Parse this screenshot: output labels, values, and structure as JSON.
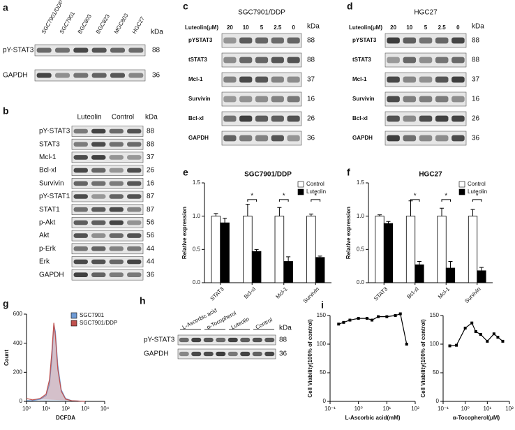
{
  "panels": {
    "a": {
      "letter": "a",
      "lanes": [
        "SGC7901/DDP",
        "SGC7901",
        "BGC803",
        "BGC823",
        "MGC803",
        "HGC27"
      ],
      "kda_label": "kDa",
      "rows": [
        {
          "label": "pY-STAT3",
          "kda": 88
        },
        {
          "label": "GAPDH",
          "kda": 36
        }
      ]
    },
    "b": {
      "letter": "b",
      "groups": [
        "Luteolin",
        "Control"
      ],
      "kda_label": "kDa",
      "rows": [
        {
          "label": "pY-STAT3",
          "kda": 88
        },
        {
          "label": "STAT3",
          "kda": 88
        },
        {
          "label": "Mcl-1",
          "kda": 37
        },
        {
          "label": "Bcl-xl",
          "kda": 26
        },
        {
          "label": "Survivin",
          "kda": 16
        },
        {
          "label": "pY-STAT1",
          "kda": 87
        },
        {
          "label": "STAT1",
          "kda": 87
        },
        {
          "label": "p-Akt",
          "kda": 56
        },
        {
          "label": "Akt",
          "kda": 56
        },
        {
          "label": "p-Erk",
          "kda": 44
        },
        {
          "label": "Erk",
          "kda": 44
        },
        {
          "label": "GAPDH",
          "kda": 36
        }
      ]
    },
    "c": {
      "letter": "c",
      "title": "SGC7901/DDP",
      "dose_label": "Luteolin(μM)",
      "doses": [
        "20",
        "10",
        "5",
        "2.5",
        "0"
      ],
      "kda_label": "kDa",
      "rows": [
        {
          "label": "pYSTAT3",
          "kda": 88
        },
        {
          "label": "tSTAT3",
          "kda": 88
        },
        {
          "label": "Mcl-1",
          "kda": 37
        },
        {
          "label": "Survivin",
          "kda": 16
        },
        {
          "label": "Bcl-xl",
          "kda": 26
        },
        {
          "label": "GAPDH",
          "kda": 36
        }
      ]
    },
    "d": {
      "letter": "d",
      "title": "HGC27",
      "dose_label": "Luteolin(μM)",
      "doses": [
        "20",
        "10",
        "5",
        "2.5",
        "0"
      ],
      "kda_label": "kDa",
      "rows": [
        {
          "label": "pYSTAT3",
          "kda": 88
        },
        {
          "label": "tSTAT3",
          "kda": 88
        },
        {
          "label": "Mcl-1",
          "kda": 37
        },
        {
          "label": "Survivin",
          "kda": 16
        },
        {
          "label": "Bcl-xl",
          "kda": 26
        },
        {
          "label": "GAPDH",
          "kda": 36
        }
      ]
    },
    "h": {
      "letter": "h",
      "groups": [
        "L-Ascorbic acid",
        "α-Tocopherol",
        "Luteolin",
        "Control"
      ],
      "kda_label": "kDa",
      "rows": [
        {
          "label": "pY-STAT3",
          "kda": 88
        },
        {
          "label": "GAPDH",
          "kda": 36
        }
      ]
    }
  },
  "chart_data": [
    {
      "type": "bar",
      "panel": "e",
      "title": "SGC7901/DDP",
      "ylabel": "Relative expression",
      "categories": [
        "STAT3",
        "Bcl-xl",
        "Mcl-1",
        "Survivin"
      ],
      "series": [
        {
          "name": "Control",
          "color": "#ffffff",
          "values": [
            1.0,
            1.0,
            1.0,
            1.0
          ],
          "errors": [
            0.04,
            0.18,
            0.13,
            0.03
          ]
        },
        {
          "name": "Luteolin",
          "color": "#000000",
          "values": [
            0.9,
            0.47,
            0.32,
            0.38
          ],
          "errors": [
            0.07,
            0.03,
            0.07,
            0.02
          ]
        }
      ],
      "annotations": [
        "*",
        "*",
        "*"
      ],
      "ylim": [
        0,
        1.5
      ],
      "yticks": [
        {
          "value": 0,
          "label": "0.0"
        },
        {
          "value": 0.5,
          "label": "0.5"
        },
        {
          "value": 1,
          "label": "1.0"
        },
        {
          "value": 1.5,
          "label": "1.5"
        }
      ],
      "legend": "upper right"
    },
    {
      "type": "bar",
      "panel": "f",
      "title": "HGC27",
      "ylabel": "Relative expression",
      "categories": [
        "STAT3",
        "Bcl-xl",
        "Mcl-1",
        "Survivin"
      ],
      "series": [
        {
          "name": "Control",
          "color": "#ffffff",
          "values": [
            1.0,
            1.0,
            1.0,
            1.0
          ],
          "errors": [
            0.02,
            0.23,
            0.12,
            0.1
          ]
        },
        {
          "name": "Luteolin",
          "color": "#000000",
          "values": [
            0.89,
            0.27,
            0.22,
            0.18
          ],
          "errors": [
            0.03,
            0.05,
            0.1,
            0.05
          ]
        }
      ],
      "annotations": [
        "*",
        "*",
        "*"
      ],
      "ylim": [
        0,
        1.5
      ],
      "yticks": [
        {
          "value": 0,
          "label": "0.0"
        },
        {
          "value": 0.5,
          "label": "0.5"
        },
        {
          "value": 1,
          "label": "1.0"
        },
        {
          "value": 1.5,
          "label": "1.5"
        }
      ],
      "legend": "upper right"
    },
    {
      "type": "line",
      "panel": "g",
      "xlabel": "DCFDA",
      "ylabel": "Count",
      "xlog": true,
      "x": [
        1,
        2,
        5,
        10,
        15,
        20,
        25,
        30,
        40,
        60,
        100,
        200,
        1000
      ],
      "series": [
        {
          "name": "SGC7901",
          "color": "#6f9bd4",
          "values": [
            5,
            5,
            15,
            40,
            120,
            300,
            530,
            480,
            250,
            80,
            20,
            5,
            0
          ]
        },
        {
          "name": "SGC7901/DDP",
          "color": "#c0504d",
          "values": [
            20,
            10,
            20,
            50,
            150,
            350,
            540,
            450,
            220,
            70,
            15,
            5,
            0
          ]
        }
      ],
      "xlim": [
        1,
        10000
      ],
      "xticks": [
        {
          "value": 1,
          "label": "10⁰"
        },
        {
          "value": 10,
          "label": "10¹"
        },
        {
          "value": 100,
          "label": "10²"
        },
        {
          "value": 1000,
          "label": "10³"
        },
        {
          "value": 10000,
          "label": "10⁴"
        }
      ],
      "ylim": [
        0,
        600
      ],
      "yticks": [
        0,
        200,
        400,
        600
      ],
      "legend": "upper right"
    },
    {
      "type": "line",
      "panel": "i",
      "xlabel": "L-Ascorbic acid(mM)",
      "ylabel": "Cell Viability(100% of control)",
      "xlog": true,
      "markers": true,
      "color": "#000000",
      "x": [
        0.2,
        0.3,
        0.5,
        1,
        2,
        3,
        5,
        10,
        20,
        30,
        50
      ],
      "values": [
        135,
        138,
        142,
        145,
        145,
        142,
        148,
        148,
        150,
        153,
        100
      ],
      "xlim": [
        0.1,
        100
      ],
      "xticks": [
        {
          "value": 0.1,
          "label": "10⁻¹"
        },
        {
          "value": 1,
          "label": "10⁰"
        },
        {
          "value": 10,
          "label": "10¹"
        },
        {
          "value": 100,
          "label": "10²"
        }
      ],
      "ylim": [
        0,
        150
      ],
      "yticks": [
        0,
        50,
        100,
        150
      ]
    },
    {
      "type": "line",
      "xlabel": "α-Tocopherol(μM)",
      "ylabel": "Cell Viability(100% of control)",
      "xlog": true,
      "markers": true,
      "color": "#000000",
      "x": [
        0.2,
        0.4,
        1,
        2,
        3,
        5,
        10,
        20,
        30,
        50
      ],
      "values": [
        97,
        98,
        128,
        137,
        122,
        117,
        105,
        118,
        112,
        105
      ],
      "xlim": [
        0.1,
        100
      ],
      "xticks": [
        {
          "value": 0.1,
          "label": "10⁻¹"
        },
        {
          "value": 1,
          "label": "10⁰"
        },
        {
          "value": 10,
          "label": "10¹"
        },
        {
          "value": 100,
          "label": "10²"
        }
      ],
      "ylim": [
        0,
        150
      ],
      "yticks": [
        0,
        50,
        100,
        150
      ]
    }
  ]
}
